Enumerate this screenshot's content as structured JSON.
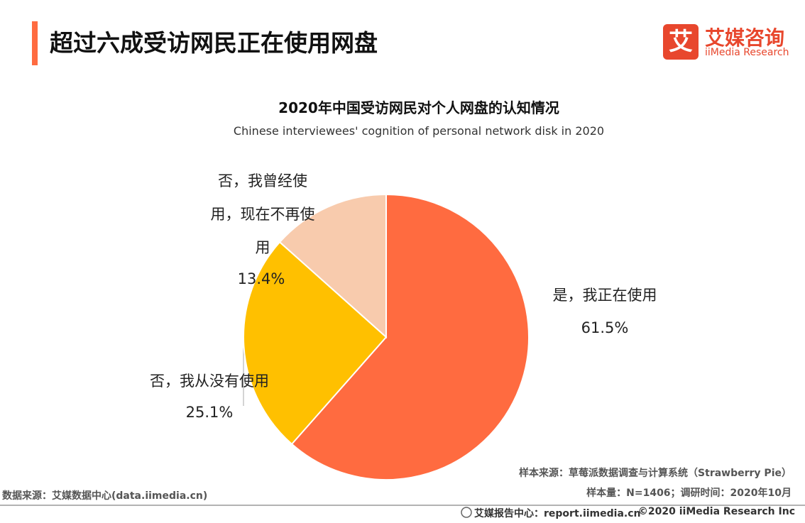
{
  "header": {
    "title": "超过六成受访网民正在使用网盘",
    "logo": {
      "icon": "艾",
      "name": "艾媒咨询",
      "en": "iiMedia Research"
    }
  },
  "chart_data": {
    "type": "pie",
    "title": "2020年中国受访网民对个人网盘的认知情况",
    "subtitle": "Chinese interviewees' cognition of personal network disk in 2020",
    "categories": [
      "是，我正在使用",
      "否，我从没有使用",
      "否，我曾经使用，现在不再使用"
    ],
    "values": [
      61.5,
      25.1,
      13.4
    ],
    "value_labels": [
      "61.5%",
      "25.1%",
      "13.4%"
    ],
    "colors": [
      "#ff6b40",
      "#ffc000",
      "#f8cbad"
    ]
  },
  "footer": {
    "sample_source": "样本来源：草莓派数据调查与计算系统（Strawberry Pie）",
    "sample_info": "样本量：N=1406；调研时间：2020年10月",
    "data_source": "数据来源：艾媒数据中心(data.iimedia.cn)",
    "report_center": "艾媒报告中心：report.iimedia.cn",
    "copyright": "©2020  iiMedia Research  Inc"
  }
}
